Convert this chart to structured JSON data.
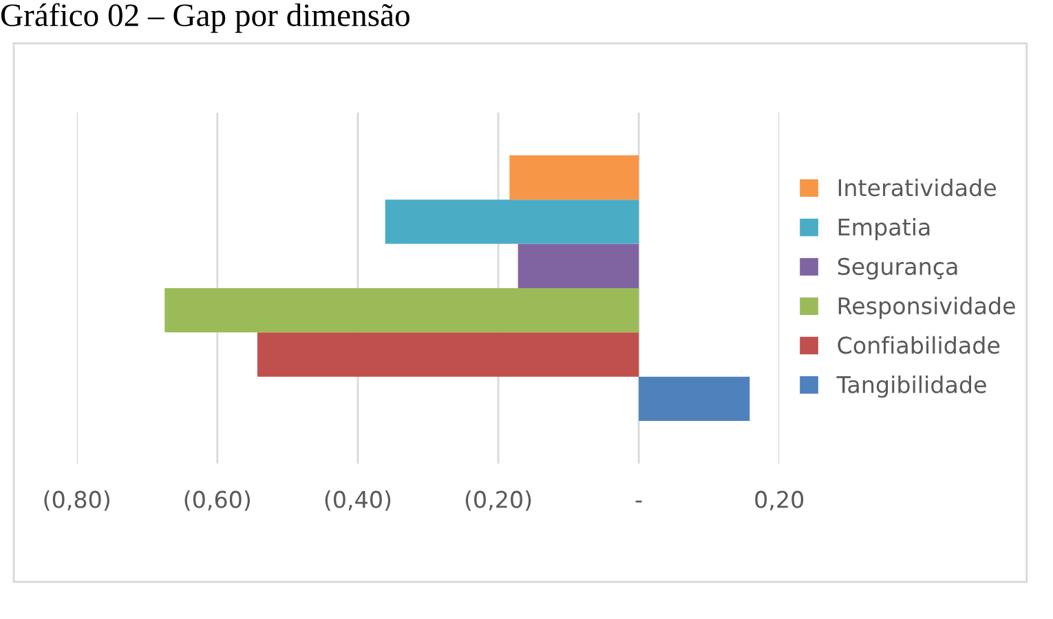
{
  "chart_data": {
    "type": "bar",
    "orientation": "horizontal",
    "title": "Gráfico 02 – Gap por dimensão",
    "categories": [
      null
    ],
    "series": [
      {
        "name": "Tangibilidade",
        "color": "#4f81bd",
        "values": [
          0.158
        ]
      },
      {
        "name": "Confiabilidade",
        "color": "#c0504d",
        "values": [
          -0.543
        ]
      },
      {
        "name": "Responsividade",
        "color": "#9bbb59",
        "values": [
          -0.675
        ]
      },
      {
        "name": "Segurança",
        "color": "#8064a2",
        "values": [
          -0.172
        ]
      },
      {
        "name": "Empatia",
        "color": "#4bacc6",
        "values": [
          -0.361
        ]
      },
      {
        "name": "Interatividade",
        "color": "#f79646",
        "values": [
          -0.184
        ]
      }
    ],
    "xlim": [
      -0.8,
      0.2
    ],
    "xticks": [
      {
        "value": -0.8,
        "label": "(0,80)"
      },
      {
        "value": -0.6,
        "label": "(0,60)"
      },
      {
        "value": -0.4,
        "label": "(0,40)"
      },
      {
        "value": -0.2,
        "label": "(0,20)"
      },
      {
        "value": 0,
        "label": "-"
      },
      {
        "value": 0.2,
        "label": "0,20"
      }
    ],
    "grid": "x",
    "legend": "right"
  }
}
